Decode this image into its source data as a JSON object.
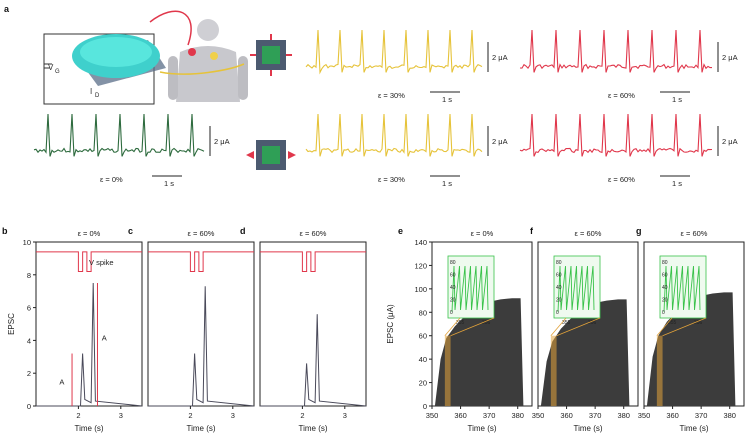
{
  "panel_a": {
    "letter": "a",
    "circuit": {
      "v_label": "V",
      "v_sub": "G",
      "i_label": "I",
      "i_sub": "D"
    },
    "scale": {
      "amp": "2 μA",
      "time": "1 s"
    },
    "traces": [
      {
        "id": "relaxed",
        "caption": "ε = 0%",
        "color": "#2e6b3e"
      },
      {
        "id": "yellow-top",
        "caption": "ε = 30%",
        "color": "#e6c33a"
      },
      {
        "id": "red-top",
        "caption": "ε = 60%",
        "color": "#e0374b"
      },
      {
        "id": "yellow-bottom",
        "caption": "ε = 30%",
        "color": "#e6c33a"
      },
      {
        "id": "red-bottom",
        "caption": "ε = 60%",
        "color": "#e0374b"
      }
    ]
  },
  "panels_bcd": [
    {
      "letter": "b",
      "title": "ε = 0%"
    },
    {
      "letter": "c",
      "title": "ε = 60%"
    },
    {
      "letter": "d",
      "title": "ε = 60%"
    }
  ],
  "panel_b_annotations": {
    "spike": "V spike",
    "spike_sub": "G",
    "a1": "A",
    "a1_sub": "1",
    "a2": "A",
    "a2_sub": "2"
  },
  "panels_efg": [
    {
      "letter": "e",
      "title": "ε = 0%"
    },
    {
      "letter": "f",
      "title": "ε = 60%"
    },
    {
      "letter": "g",
      "title": "ε = 60%"
    }
  ],
  "chart_data": [
    {
      "type": "line",
      "panel": "b",
      "title": "ε = 0%",
      "xlabel": "Time (s)",
      "ylabel": "EPSC",
      "xlim": [
        1.0,
        3.5
      ],
      "ylim": [
        0,
        10
      ],
      "x_ticks": [
        2,
        3
      ],
      "y_ticks": [
        0,
        2,
        4,
        6,
        8,
        10
      ],
      "series": [
        {
          "name": "EPSC",
          "x": [
            1.0,
            2.05,
            2.1,
            2.15,
            2.3,
            2.35,
            2.4,
            3.5
          ],
          "values": [
            0,
            0,
            3.2,
            0.4,
            0.2,
            7.5,
            0.3,
            0
          ]
        }
      ],
      "grid": false
    },
    {
      "type": "line",
      "panel": "c",
      "title": "ε = 60%",
      "xlabel": "Time (s)",
      "xlim": [
        1.0,
        3.5
      ],
      "ylim": [
        0,
        10
      ],
      "x_ticks": [
        2,
        3
      ],
      "series": [
        {
          "name": "EPSC",
          "x": [
            1.0,
            2.05,
            2.1,
            2.15,
            2.3,
            2.35,
            2.4,
            3.5
          ],
          "values": [
            0,
            0,
            3.2,
            0.4,
            0.2,
            7.3,
            0.3,
            0
          ]
        }
      ],
      "grid": false
    },
    {
      "type": "line",
      "panel": "d",
      "title": "ε = 60%",
      "xlabel": "Time (s)",
      "xlim": [
        1.0,
        3.5
      ],
      "ylim": [
        0,
        10
      ],
      "x_ticks": [
        2,
        3
      ],
      "series": [
        {
          "name": "EPSC",
          "x": [
            1.0,
            2.05,
            2.1,
            2.15,
            2.3,
            2.35,
            2.4,
            3.5
          ],
          "values": [
            0,
            0,
            2.6,
            0.4,
            0.2,
            5.6,
            0.3,
            0
          ]
        }
      ],
      "grid": false
    },
    {
      "type": "area",
      "panel": "e",
      "title": "ε = 0%",
      "xlabel": "Time (s)",
      "ylabel": "EPSC (μA)",
      "xlim": [
        350,
        385
      ],
      "ylim": [
        0,
        140
      ],
      "x_ticks": [
        350,
        360,
        370,
        380
      ],
      "y_ticks": [
        0,
        20,
        40,
        60,
        80,
        100,
        120,
        140
      ],
      "series": [
        {
          "name": "EPSC",
          "x": [
            351,
            353,
            355,
            358,
            362,
            366,
            370,
            374,
            378,
            381,
            382
          ],
          "values": [
            0,
            40,
            58,
            68,
            78,
            85,
            89,
            91,
            92,
            92,
            0
          ]
        }
      ],
      "grid": false
    },
    {
      "type": "area",
      "panel": "f",
      "title": "ε = 60%",
      "xlabel": "Time (s)",
      "xlim": [
        350,
        385
      ],
      "ylim": [
        0,
        140
      ],
      "x_ticks": [
        350,
        360,
        370,
        380
      ],
      "series": [
        {
          "name": "EPSC",
          "x": [
            351,
            353,
            355,
            358,
            362,
            366,
            370,
            374,
            378,
            381,
            382
          ],
          "values": [
            0,
            38,
            55,
            66,
            76,
            84,
            88,
            90,
            91,
            91,
            0
          ]
        }
      ],
      "grid": false
    },
    {
      "type": "area",
      "panel": "g",
      "title": "ε = 60%",
      "xlabel": "Time (s)",
      "xlim": [
        350,
        385
      ],
      "ylim": [
        0,
        140
      ],
      "x_ticks": [
        350,
        360,
        370,
        380
      ],
      "series": [
        {
          "name": "EPSC",
          "x": [
            351,
            353,
            355,
            358,
            362,
            366,
            370,
            374,
            378,
            381,
            382
          ],
          "values": [
            0,
            42,
            60,
            72,
            82,
            90,
            94,
            96,
            97,
            97,
            0
          ]
        }
      ],
      "grid": false
    }
  ],
  "inset": {
    "y_ticks": [
      0,
      20,
      40,
      60,
      80
    ],
    "x_ticks": [
      "355",
      "356"
    ]
  },
  "colors": {
    "spike_red": "#e0374b",
    "green": "#39c24a",
    "area": "#3c3c3c",
    "highlight": "#e2a23a"
  }
}
